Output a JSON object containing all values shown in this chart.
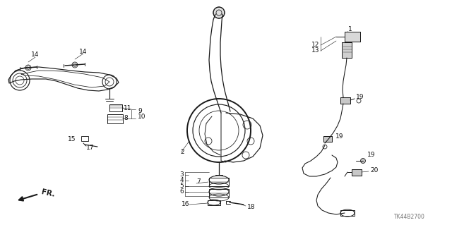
{
  "bg_color": "#ffffff",
  "part_number_label": "TK44B2700",
  "fig_width": 6.4,
  "fig_height": 3.19,
  "dpi": 100,
  "line_color": "#1a1a1a",
  "gray_color": "#555555",
  "label_fontsize": 6.5,
  "lw": 0.7
}
